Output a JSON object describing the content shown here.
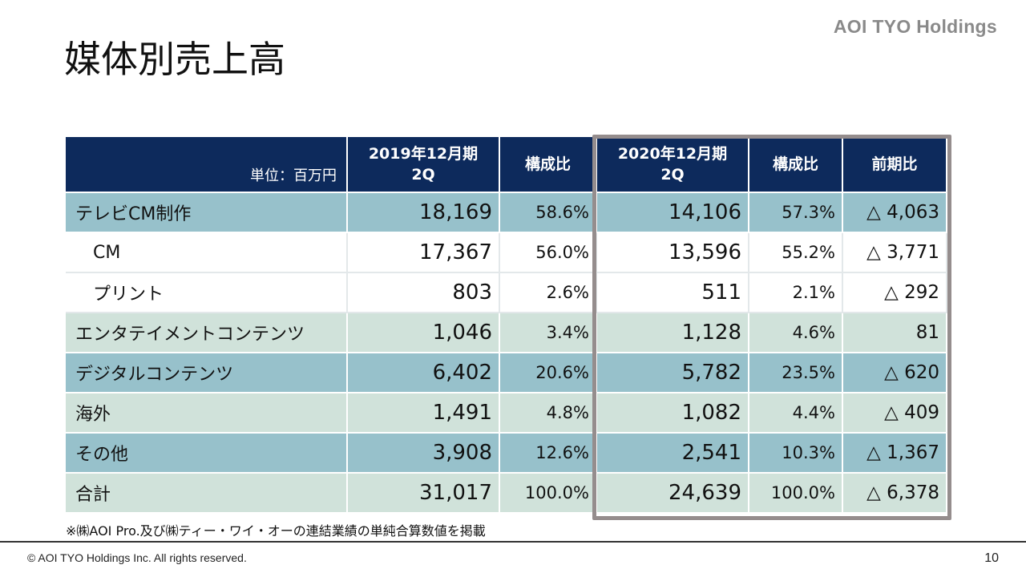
{
  "brand": "AOI TYO Holdings",
  "title": "媒体別売上高",
  "table": {
    "headers": {
      "unit": "単位：百万円",
      "period_2019_line1": "2019年12月期",
      "period_2019_line2": "2Q",
      "ratio_2019": "構成比",
      "period_2020_line1": "2020年12月期",
      "period_2020_line2": "2Q",
      "ratio_2020": "構成比",
      "yoy": "前期比"
    },
    "rows": [
      {
        "label": "テレビCM制作",
        "v2019": "18,169",
        "r2019": "58.6%",
        "v2020": "14,106",
        "r2020": "57.3%",
        "diff": "△ 4,063"
      },
      {
        "label": "CM",
        "v2019": "17,367",
        "r2019": "56.0%",
        "v2020": "13,596",
        "r2020": "55.2%",
        "diff": "△ 3,771"
      },
      {
        "label": "プリント",
        "v2019": "803",
        "r2019": "2.6%",
        "v2020": "511",
        "r2020": "2.1%",
        "diff": "△ 292"
      },
      {
        "label": "エンタテイメントコンテンツ",
        "v2019": "1,046",
        "r2019": "3.4%",
        "v2020": "1,128",
        "r2020": "4.6%",
        "diff": "81"
      },
      {
        "label": "デジタルコンテンツ",
        "v2019": "6,402",
        "r2019": "20.6%",
        "v2020": "5,782",
        "r2020": "23.5%",
        "diff": "△ 620"
      },
      {
        "label": "海外",
        "v2019": "1,491",
        "r2019": "4.8%",
        "v2020": "1,082",
        "r2020": "4.4%",
        "diff": "△ 409"
      },
      {
        "label": "その他",
        "v2019": "3,908",
        "r2019": "12.6%",
        "v2020": "2,541",
        "r2020": "10.3%",
        "diff": "△ 1,367"
      },
      {
        "label": "合計",
        "v2019": "31,017",
        "r2019": "100.0%",
        "v2020": "24,639",
        "r2020": "100.0%",
        "diff": "△ 6,378"
      }
    ]
  },
  "note": "※㈱AOI Pro.及び㈱ティー・ワイ・オーの連結業績の単純合算数値を掲載",
  "footer": {
    "copyright": "© AOI TYO Holdings Inc. All rights reserved.",
    "page_number": "10"
  },
  "colors": {
    "header_bg": "#0d2a5c",
    "row_blue": "#97c1cb",
    "row_green": "#d0e2da",
    "highlight_border": "#958d8d"
  }
}
